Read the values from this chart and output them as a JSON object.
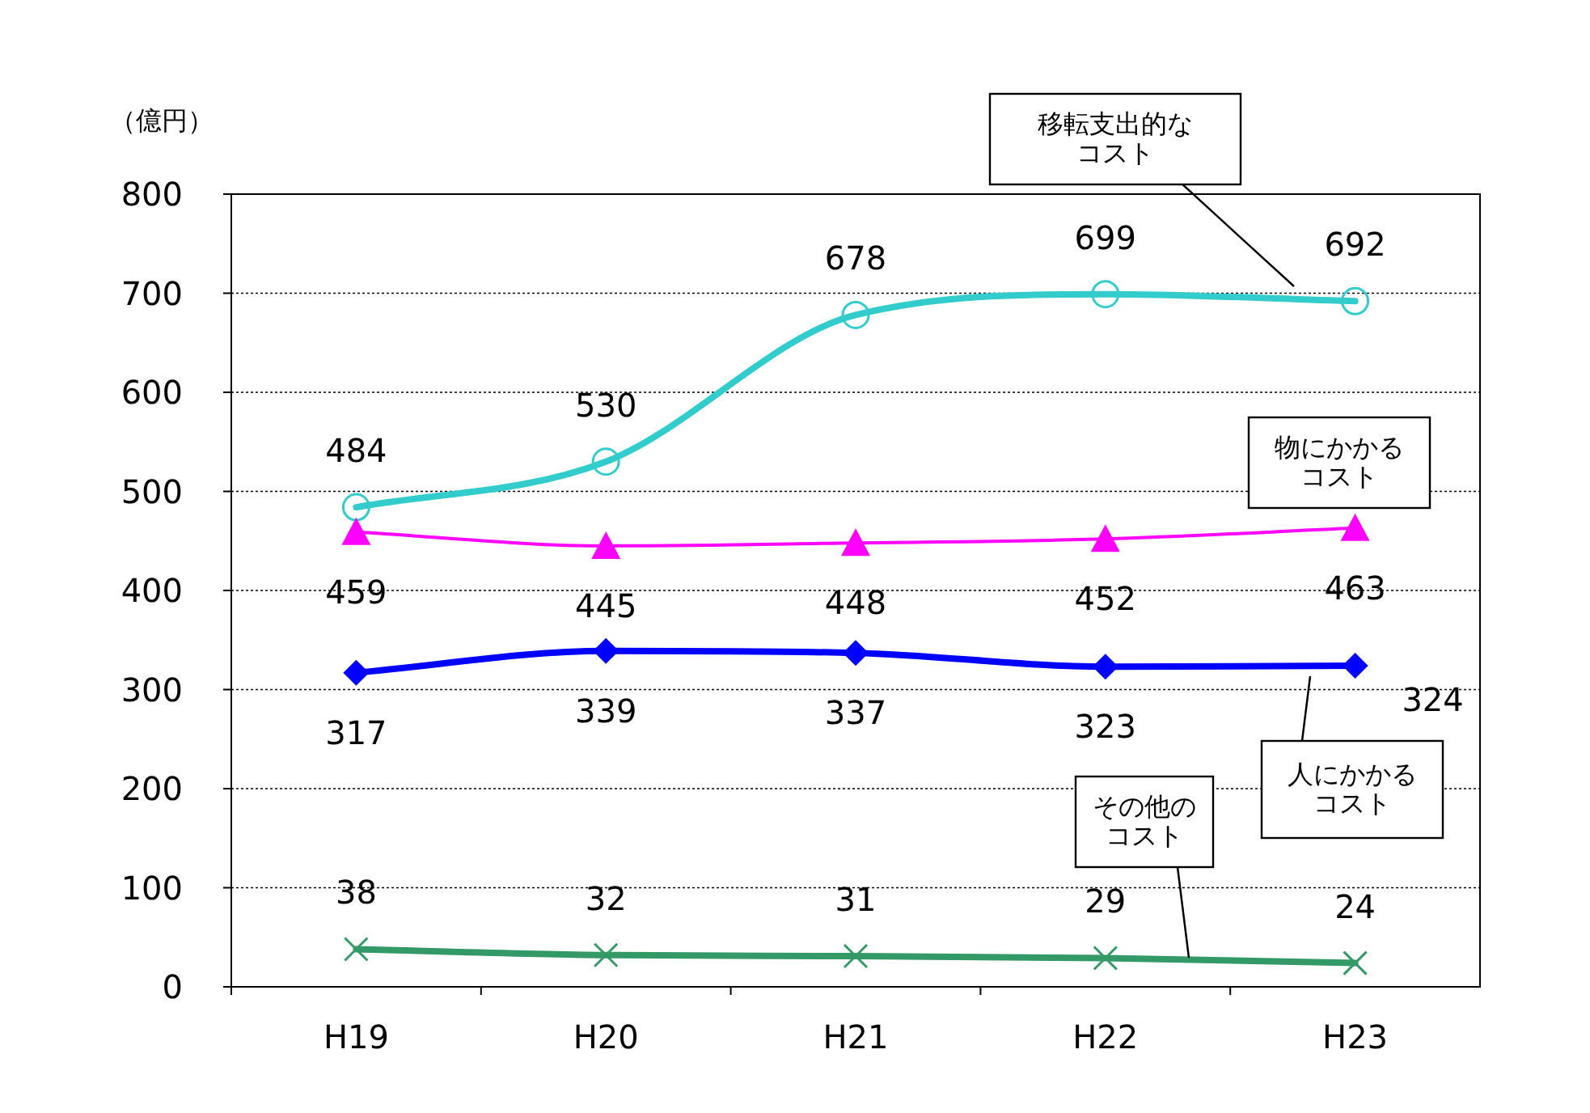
{
  "chart_data": {
    "type": "line",
    "ylabel": "（億円）",
    "categories": [
      "H19",
      "H20",
      "H21",
      "H22",
      "H23"
    ],
    "series": [
      {
        "name": "移転支出的なコスト",
        "color": "#33cccc",
        "marker": "circle",
        "values": [
          484,
          530,
          678,
          699,
          692
        ]
      },
      {
        "name": "物にかかるコスト",
        "color": "#ff00ff",
        "marker": "triangle",
        "values": [
          459,
          445,
          448,
          452,
          463
        ]
      },
      {
        "name": "人にかかるコスト",
        "color": "#0000ff",
        "marker": "diamond",
        "values": [
          317,
          339,
          337,
          323,
          324
        ]
      },
      {
        "name": "その他のコスト",
        "color": "#339966",
        "marker": "cross",
        "values": [
          38,
          32,
          31,
          29,
          24
        ]
      }
    ],
    "ylim": [
      0,
      800
    ],
    "yticks": [
      0,
      100,
      200,
      300,
      400,
      500,
      600,
      700,
      800
    ],
    "grid": "y",
    "legend": false,
    "data_labels": true
  }
}
